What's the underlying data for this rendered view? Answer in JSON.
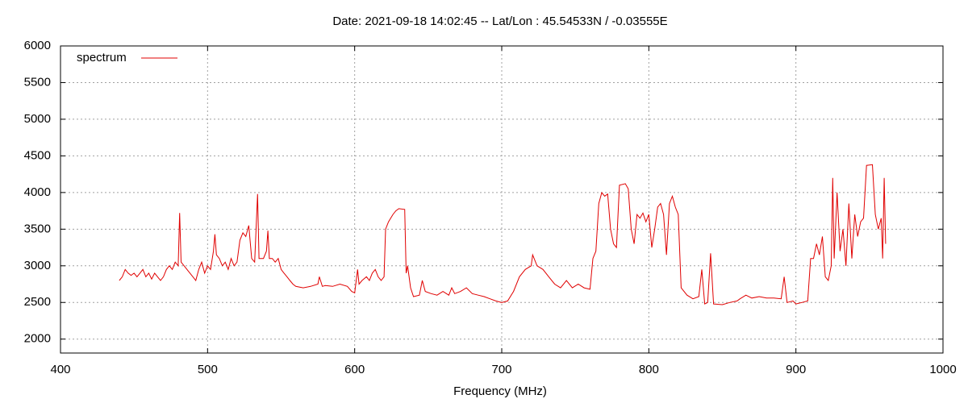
{
  "chart_data": {
    "type": "line",
    "title": "Date: 2021-09-18 14:02:45  --  Lat/Lon : 45.54533N / -0.03555E",
    "x_label": "Frequency (MHz)",
    "xlim": [
      400,
      1000
    ],
    "xticks": [
      400,
      500,
      600,
      700,
      800,
      900,
      1000
    ],
    "ylim": [
      1810,
      6000
    ],
    "yticks": [
      2000,
      2500,
      3000,
      3500,
      4000,
      4500,
      5000,
      5500,
      6000
    ],
    "grid": true,
    "legend": "top-left",
    "series": [
      {
        "name": "spectrum",
        "color": "#e00000",
        "x": [
          440,
          442,
          444,
          446,
          448,
          450,
          452,
          454,
          456,
          458,
          460,
          462,
          464,
          466,
          468,
          470,
          472,
          474,
          476,
          478,
          480,
          481,
          482,
          484,
          486,
          488,
          490,
          492,
          494,
          496,
          498,
          500,
          502,
          504,
          505,
          506,
          508,
          510,
          512,
          514,
          516,
          518,
          520,
          522,
          524,
          526,
          528,
          530,
          532,
          534,
          535,
          538,
          540,
          541,
          542,
          544,
          546,
          548,
          550,
          552,
          554,
          556,
          558,
          560,
          565,
          570,
          575,
          576,
          578,
          580,
          585,
          590,
          595,
          598,
          600,
          602,
          603,
          605,
          608,
          610,
          612,
          614,
          616,
          618,
          620,
          621,
          623,
          626,
          628,
          630,
          634,
          635,
          636,
          638,
          640,
          644,
          646,
          648,
          652,
          656,
          660,
          664,
          666,
          668,
          672,
          676,
          680,
          684,
          688,
          692,
          696,
          700,
          704,
          708,
          712,
          716,
          720,
          721,
          724,
          728,
          732,
          736,
          740,
          744,
          748,
          752,
          756,
          760,
          762,
          764,
          766,
          768,
          770,
          772,
          774,
          776,
          778,
          780,
          784,
          786,
          788,
          790,
          792,
          794,
          796,
          798,
          800,
          802,
          804,
          806,
          808,
          810,
          812,
          814,
          816,
          818,
          820,
          822,
          826,
          830,
          834,
          836,
          838,
          840,
          842,
          844,
          850,
          855,
          860,
          862,
          866,
          870,
          875,
          880,
          885,
          890,
          892,
          894,
          898,
          900,
          904,
          908,
          910,
          912,
          914,
          916,
          918,
          920,
          922,
          924,
          925,
          926,
          928,
          930,
          932,
          934,
          936,
          938,
          940,
          942,
          944,
          946,
          948,
          952,
          954,
          956,
          958,
          959,
          960,
          961
        ],
        "values": [
          2800,
          2850,
          2950,
          2900,
          2870,
          2900,
          2850,
          2900,
          2950,
          2850,
          2900,
          2820,
          2900,
          2850,
          2800,
          2850,
          2950,
          3000,
          2950,
          3050,
          3000,
          3720,
          3050,
          3000,
          2950,
          2900,
          2850,
          2800,
          2950,
          3050,
          2900,
          3000,
          2950,
          3200,
          3430,
          3150,
          3100,
          3000,
          3050,
          2950,
          3100,
          3000,
          3050,
          3350,
          3450,
          3400,
          3550,
          3100,
          3050,
          3980,
          3100,
          3100,
          3200,
          3480,
          3100,
          3100,
          3050,
          3100,
          2950,
          2900,
          2850,
          2800,
          2750,
          2720,
          2700,
          2720,
          2750,
          2850,
          2720,
          2730,
          2720,
          2750,
          2720,
          2650,
          2630,
          2950,
          2750,
          2800,
          2850,
          2800,
          2900,
          2950,
          2850,
          2800,
          2850,
          3500,
          3600,
          3700,
          3750,
          3780,
          3770,
          2900,
          3000,
          2700,
          2580,
          2600,
          2800,
          2650,
          2620,
          2600,
          2650,
          2600,
          2700,
          2620,
          2650,
          2700,
          2620,
          2600,
          2580,
          2550,
          2520,
          2500,
          2520,
          2650,
          2850,
          2950,
          3000,
          3150,
          3000,
          2950,
          2850,
          2750,
          2700,
          2800,
          2700,
          2750,
          2700,
          2680,
          3100,
          3200,
          3850,
          4000,
          3950,
          3980,
          3500,
          3300,
          3250,
          4100,
          4120,
          4050,
          3500,
          3300,
          3700,
          3650,
          3720,
          3600,
          3700,
          3250,
          3500,
          3800,
          3850,
          3700,
          3150,
          3850,
          3950,
          3800,
          3700,
          2700,
          2600,
          2550,
          2580,
          2950,
          2480,
          2500,
          3170,
          2480,
          2470,
          2500,
          2520,
          2550,
          2600,
          2560,
          2580,
          2560,
          2560,
          2550,
          2850,
          2500,
          2520,
          2480,
          2500,
          2520,
          3100,
          3100,
          3300,
          3150,
          3400,
          2850,
          2800,
          3000,
          4200,
          3100,
          4000,
          3200,
          3500,
          3000,
          3850,
          3100,
          3700,
          3400,
          3600,
          3650,
          4370,
          4380,
          3700,
          3500,
          3650,
          3100,
          4200,
          3300
        ]
      }
    ]
  }
}
